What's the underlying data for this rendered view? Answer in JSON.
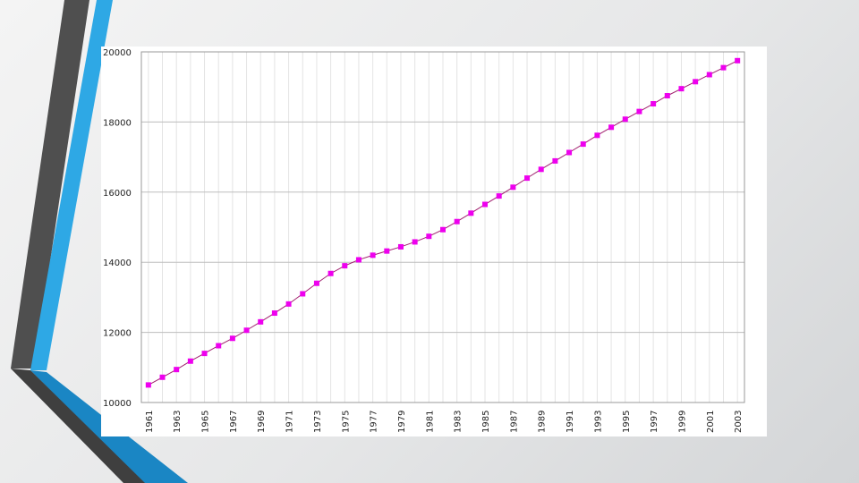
{
  "colors": {
    "background": "#e8e9ea",
    "accent_dark": "#4a4a4a",
    "accent_blue": "#2ea8e5",
    "accent_blue_dark": "#1a86c4",
    "series_line": "#a0206e",
    "series_marker": "#ee00ee",
    "grid": "#cfcfcf"
  },
  "chart_data": {
    "type": "line",
    "title": "",
    "xlabel": "",
    "ylabel": "",
    "ylim": [
      10000,
      20000
    ],
    "yticks": [
      10000,
      12000,
      14000,
      16000,
      18000,
      20000
    ],
    "ytick_labels": [
      "10000",
      "12000",
      "14000",
      "16000",
      "18000",
      "20000"
    ],
    "xtick_labels": [
      "1961",
      "1963",
      "1965",
      "1967",
      "1969",
      "1971",
      "1973",
      "1975",
      "1977",
      "1979",
      "1981",
      "1983",
      "1985",
      "1987",
      "1989",
      "1991",
      "1993",
      "1995",
      "1997",
      "1999",
      "2001",
      "2003"
    ],
    "grid": true,
    "legend": "none",
    "series": [
      {
        "x": [
          1961,
          1962,
          1963,
          1964,
          1965,
          1966,
          1967,
          1968,
          1969,
          1970,
          1971,
          1972,
          1973,
          1974,
          1975,
          1976,
          1977,
          1978,
          1979,
          1980,
          1981,
          1982,
          1983,
          1984,
          1985,
          1986,
          1987,
          1988,
          1989,
          1990,
          1991,
          1992,
          1993,
          1994,
          1995,
          1996,
          1997,
          1998,
          1999,
          2000,
          2001,
          2002,
          2003
        ],
        "values": [
          10500,
          10720,
          10940,
          11180,
          11400,
          11620,
          11830,
          12060,
          12300,
          12550,
          12810,
          13100,
          13400,
          13680,
          13900,
          14070,
          14200,
          14320,
          14440,
          14580,
          14740,
          14930,
          15160,
          15400,
          15650,
          15890,
          16140,
          16400,
          16650,
          16890,
          17130,
          17370,
          17620,
          17850,
          18080,
          18300,
          18520,
          18750,
          18950,
          19150,
          19350,
          19550,
          19750
        ]
      }
    ]
  }
}
